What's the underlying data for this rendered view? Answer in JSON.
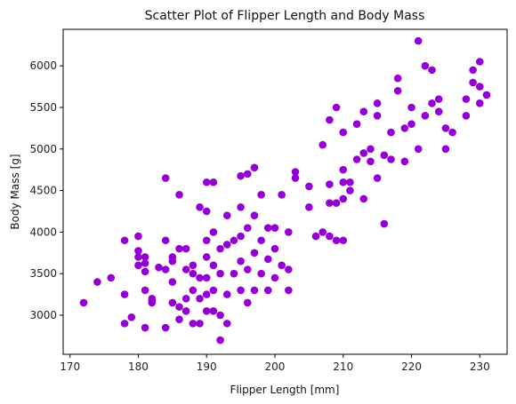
{
  "chart_data": {
    "type": "scatter",
    "title": "Scatter Plot of Flipper Length and Body Mass",
    "xlabel": "Flipper Length  [mm]",
    "ylabel": "Body Mass [g]",
    "xlim": [
      169,
      234
    ],
    "ylim": [
      2530,
      6440
    ],
    "xticks": [
      170,
      180,
      190,
      200,
      210,
      220,
      230
    ],
    "yticks": [
      3000,
      3500,
      4000,
      4500,
      5000,
      5500,
      6000
    ],
    "grid": false,
    "color": "#9400D3",
    "series": [
      {
        "points": [
          [
            172,
            3150
          ],
          [
            174,
            3400
          ],
          [
            176,
            3450
          ],
          [
            178,
            2900
          ],
          [
            178,
            3250
          ],
          [
            178,
            3900
          ],
          [
            179,
            2975
          ],
          [
            180,
            3600
          ],
          [
            180,
            3700
          ],
          [
            180,
            3775
          ],
          [
            180,
            3950
          ],
          [
            181,
            2850
          ],
          [
            181,
            3300
          ],
          [
            181,
            3625
          ],
          [
            181,
            3700
          ],
          [
            181,
            3525
          ],
          [
            182,
            3150
          ],
          [
            182,
            3175
          ],
          [
            182,
            3200
          ],
          [
            183,
            3575
          ],
          [
            184,
            2850
          ],
          [
            184,
            3550
          ],
          [
            184,
            3900
          ],
          [
            184,
            4650
          ],
          [
            185,
            3150
          ],
          [
            185,
            3650
          ],
          [
            185,
            3700
          ],
          [
            185,
            3400
          ],
          [
            186,
            2950
          ],
          [
            186,
            3100
          ],
          [
            186,
            3800
          ],
          [
            186,
            4450
          ],
          [
            187,
            3050
          ],
          [
            187,
            3200
          ],
          [
            187,
            3550
          ],
          [
            187,
            3800
          ],
          [
            188,
            2900
          ],
          [
            188,
            3300
          ],
          [
            188,
            3500
          ],
          [
            188,
            3600
          ],
          [
            189,
            2900
          ],
          [
            189,
            3200
          ],
          [
            189,
            3450
          ],
          [
            189,
            4300
          ],
          [
            190,
            3050
          ],
          [
            190,
            3250
          ],
          [
            190,
            3450
          ],
          [
            190,
            3700
          ],
          [
            190,
            3900
          ],
          [
            190,
            4250
          ],
          [
            190,
            4600
          ],
          [
            191,
            3050
          ],
          [
            191,
            3300
          ],
          [
            191,
            3600
          ],
          [
            191,
            4000
          ],
          [
            191,
            4600
          ],
          [
            192,
            2700
          ],
          [
            192,
            3000
          ],
          [
            192,
            3500
          ],
          [
            192,
            3800
          ],
          [
            193,
            2900
          ],
          [
            193,
            3250
          ],
          [
            193,
            3850
          ],
          [
            193,
            4200
          ],
          [
            194,
            3500
          ],
          [
            194,
            3900
          ],
          [
            195,
            3300
          ],
          [
            195,
            3650
          ],
          [
            195,
            3950
          ],
          [
            195,
            4300
          ],
          [
            195,
            4675
          ],
          [
            196,
            3150
          ],
          [
            196,
            3550
          ],
          [
            196,
            4050
          ],
          [
            196,
            4700
          ],
          [
            197,
            3300
          ],
          [
            197,
            3750
          ],
          [
            197,
            4200
          ],
          [
            197,
            4775
          ],
          [
            198,
            3500
          ],
          [
            198,
            3900
          ],
          [
            198,
            4450
          ],
          [
            199,
            3300
          ],
          [
            199,
            3675
          ],
          [
            199,
            4050
          ],
          [
            200,
            3450
          ],
          [
            200,
            3800
          ],
          [
            200,
            4050
          ],
          [
            201,
            3600
          ],
          [
            201,
            4450
          ],
          [
            202,
            3300
          ],
          [
            202,
            3550
          ],
          [
            202,
            4000
          ],
          [
            203,
            4650
          ],
          [
            203,
            4725
          ],
          [
            205,
            4550
          ],
          [
            205,
            4300
          ],
          [
            206,
            3950
          ],
          [
            207,
            4000
          ],
          [
            207,
            5050
          ],
          [
            208,
            3950
          ],
          [
            208,
            4350
          ],
          [
            208,
            4575
          ],
          [
            208,
            5350
          ],
          [
            209,
            3900
          ],
          [
            209,
            4350
          ],
          [
            209,
            5500
          ],
          [
            210,
            3900
          ],
          [
            210,
            4400
          ],
          [
            210,
            4600
          ],
          [
            210,
            4750
          ],
          [
            210,
            5200
          ],
          [
            211,
            4500
          ],
          [
            211,
            4600
          ],
          [
            212,
            4875
          ],
          [
            212,
            5300
          ],
          [
            213,
            4400
          ],
          [
            213,
            4950
          ],
          [
            213,
            5450
          ],
          [
            214,
            4850
          ],
          [
            214,
            5000
          ],
          [
            215,
            4650
          ],
          [
            215,
            5400
          ],
          [
            215,
            5550
          ],
          [
            216,
            4925
          ],
          [
            216,
            4100
          ],
          [
            217,
            4875
          ],
          [
            217,
            5200
          ],
          [
            218,
            5700
          ],
          [
            218,
            5850
          ],
          [
            219,
            4850
          ],
          [
            219,
            5250
          ],
          [
            220,
            5300
          ],
          [
            220,
            5500
          ],
          [
            221,
            5000
          ],
          [
            221,
            6300
          ],
          [
            222,
            5400
          ],
          [
            222,
            6000
          ],
          [
            223,
            5550
          ],
          [
            223,
            5950
          ],
          [
            224,
            5600
          ],
          [
            224,
            5450
          ],
          [
            225,
            5000
          ],
          [
            225,
            5250
          ],
          [
            226,
            5200
          ],
          [
            228,
            5400
          ],
          [
            228,
            5600
          ],
          [
            229,
            5800
          ],
          [
            229,
            5950
          ],
          [
            230,
            5550
          ],
          [
            230,
            5750
          ],
          [
            230,
            6050
          ],
          [
            231,
            5650
          ]
        ]
      }
    ]
  }
}
